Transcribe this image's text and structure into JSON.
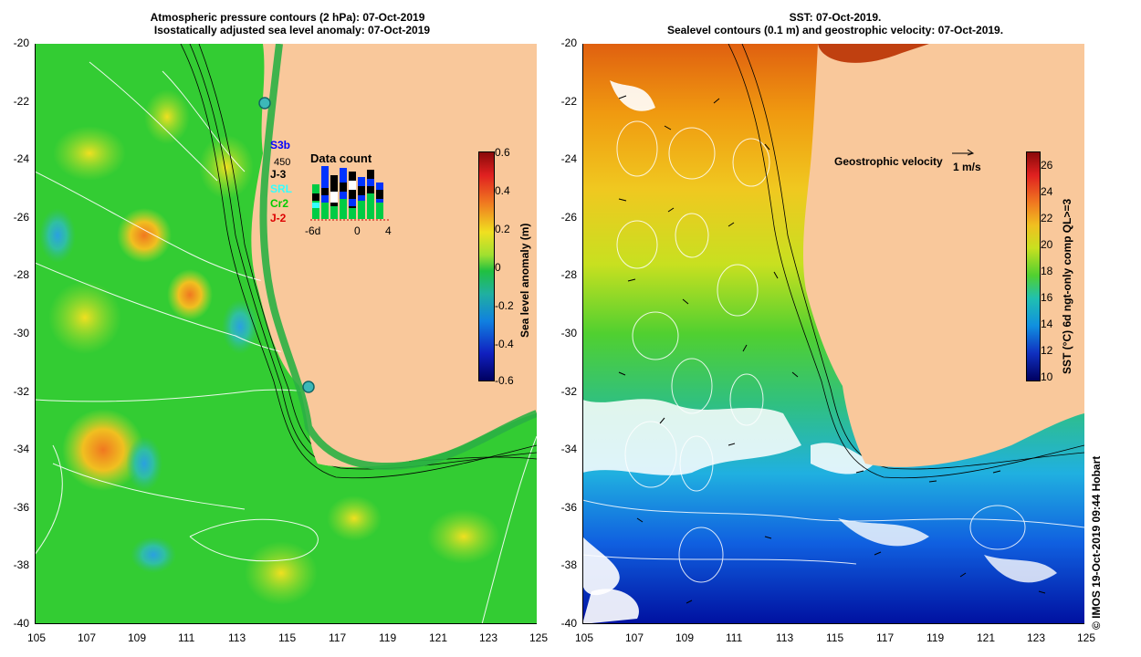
{
  "left_panel": {
    "title_line1": "Atmospheric pressure contours (2 hPa): 07-Oct-2019",
    "title_line2": "Isostatically adjusted sea level anomaly: 07-Oct-2019",
    "colorbar_label": "Sea level anomaly (m)",
    "colorbar_ticks": [
      "0.6",
      "0.4",
      "0.2",
      "0",
      "-0.2",
      "-0.4",
      "-0.6"
    ],
    "satellites": [
      {
        "name": "S3b",
        "color": "#0000ff"
      },
      {
        "name": "J-3",
        "color": "#000000"
      },
      {
        "name": "SRL",
        "color": "#33ffff"
      },
      {
        "name": "Cr2",
        "color": "#00cc00"
      },
      {
        "name": "J-2",
        "color": "#dd0000"
      }
    ],
    "data_count_title": "Data count",
    "data_count_max": "450",
    "data_count_xticks": [
      "-6d",
      "0",
      "4"
    ]
  },
  "right_panel": {
    "title_line1": "SST: 07-Oct-2019.",
    "title_line2": "Sealevel contours (0.1 m) and geostrophic velocity: 07-Oct-2019.",
    "velocity_label": "Geostrophic velocity",
    "velocity_scale": "1 m/s",
    "colorbar_label": "SST (°C) 6d ngt-only comp QL>=3",
    "colorbar_ticks": [
      "26",
      "24",
      "22",
      "20",
      "18",
      "16",
      "14",
      "12",
      "10"
    ]
  },
  "axes": {
    "y_ticks": [
      "-20",
      "-22",
      "-24",
      "-26",
      "-28",
      "-30",
      "-32",
      "-34",
      "-36",
      "-38",
      "-40"
    ],
    "x_ticks": [
      "105",
      "107",
      "109",
      "111",
      "113",
      "115",
      "117",
      "119",
      "121",
      "123",
      "125"
    ]
  },
  "credit": "© IMOS 19-Oct-2019 09:44 Hobart",
  "colors": {
    "land": "#f9c89b",
    "ocean_sla": "#33cc33",
    "sst_warm": "#ff9900",
    "sst_cold": "#0033cc"
  }
}
